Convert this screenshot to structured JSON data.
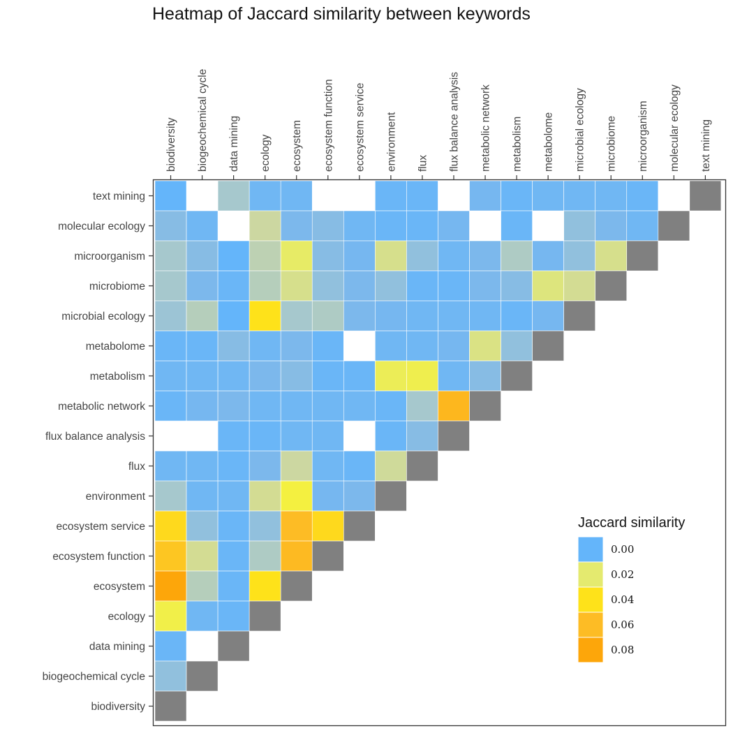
{
  "chart_data": {
    "type": "heatmap",
    "title": "Heatmap of Jaccard similarity between keywords",
    "x_categories": [
      "biodiversity",
      "biogeochemical cycle",
      "data mining",
      "ecology",
      "ecosystem",
      "ecosystem function",
      "ecosystem service",
      "environment",
      "flux",
      "flux balance analysis",
      "metabolic network",
      "metabolism",
      "metabolome",
      "microbial ecology",
      "microbiome",
      "microorganism",
      "molecular ecology",
      "text mining"
    ],
    "y_categories": [
      "text mining",
      "molecular ecology",
      "microorganism",
      "microbiome",
      "microbial ecology",
      "metabolome",
      "metabolism",
      "metabolic network",
      "flux balance analysis",
      "flux",
      "environment",
      "ecosystem service",
      "ecosystem function",
      "ecosystem",
      "ecology",
      "data mining",
      "biogeochemical cycle",
      "biodiversity"
    ],
    "x_axis_position": "top",
    "diagonal_color": "#808080",
    "missing": "blank",
    "values": [
      [
        0.0,
        null,
        0.008,
        0.002,
        0.002,
        null,
        null,
        0.001,
        0.001,
        null,
        0.003,
        0.001,
        0.002,
        0.002,
        0.002,
        0.001,
        null,
        "diag"
      ],
      [
        0.005,
        0.002,
        null,
        0.013,
        0.004,
        0.005,
        0.002,
        0.001,
        0.001,
        0.003,
        null,
        0.001,
        null,
        0.006,
        0.004,
        0.002,
        "diag"
      ],
      [
        0.008,
        0.005,
        0.0,
        0.011,
        0.022,
        0.005,
        0.003,
        0.016,
        0.006,
        0.002,
        0.004,
        0.009,
        0.003,
        0.006,
        0.016,
        "diag"
      ],
      [
        0.008,
        0.004,
        0.001,
        0.01,
        0.016,
        0.006,
        0.004,
        0.006,
        0.001,
        0.001,
        0.004,
        0.005,
        0.018,
        0.015,
        "diag"
      ],
      [
        0.007,
        0.01,
        0.0,
        0.04,
        0.008,
        0.009,
        0.004,
        0.003,
        0.002,
        0.002,
        0.002,
        0.001,
        0.003,
        "diag"
      ],
      [
        0.001,
        0.001,
        0.005,
        0.002,
        0.004,
        0.001,
        null,
        0.002,
        0.002,
        0.003,
        0.017,
        0.006,
        "diag"
      ],
      [
        0.002,
        0.002,
        0.002,
        0.004,
        0.005,
        0.001,
        0.001,
        0.025,
        0.027,
        0.002,
        0.005,
        "diag"
      ],
      [
        0.001,
        0.003,
        0.004,
        0.002,
        0.002,
        0.002,
        0.002,
        0.001,
        0.008,
        0.065,
        "diag"
      ],
      [
        null,
        null,
        0.001,
        0.001,
        0.002,
        0.002,
        null,
        0.001,
        0.005,
        "diag"
      ],
      [
        0.002,
        0.002,
        0.001,
        0.004,
        0.013,
        0.002,
        0.001,
        0.014,
        "diag"
      ],
      [
        0.008,
        0.002,
        0.002,
        0.015,
        0.03,
        0.003,
        0.004,
        "diag"
      ],
      [
        0.045,
        0.006,
        0.001,
        0.006,
        0.06,
        0.045,
        "diag"
      ],
      [
        0.055,
        0.015,
        0.001,
        0.009,
        0.062,
        "diag"
      ],
      [
        0.08,
        0.01,
        0.001,
        0.04,
        "diag"
      ],
      [
        0.028,
        0.002,
        0.001,
        "diag"
      ],
      [
        0.001,
        null,
        "diag"
      ],
      [
        0.006,
        "diag"
      ],
      [
        "diag"
      ]
    ],
    "legend": {
      "title": "Jaccard similarity",
      "placement": "right",
      "entries": [
        {
          "label": "0.00",
          "color": "#64b5fa"
        },
        {
          "label": "0.02",
          "color": "#e4ea6f"
        },
        {
          "label": "0.04",
          "color": "#fee21a"
        },
        {
          "label": "0.06",
          "color": "#fdbc25"
        },
        {
          "label": "0.08",
          "color": "#fda60a"
        }
      ]
    },
    "color_scale": {
      "stops": [
        {
          "value": 0.0,
          "color": "#64b5fa"
        },
        {
          "value": 0.004,
          "color": "#7cb8ec"
        },
        {
          "value": 0.008,
          "color": "#a6c8cd"
        },
        {
          "value": 0.013,
          "color": "#ccd7a1"
        },
        {
          "value": 0.02,
          "color": "#e4ea6f"
        },
        {
          "value": 0.03,
          "color": "#f4f040"
        },
        {
          "value": 0.04,
          "color": "#fee21a"
        },
        {
          "value": 0.06,
          "color": "#fdbc25"
        },
        {
          "value": 0.08,
          "color": "#fda60a"
        }
      ]
    }
  }
}
